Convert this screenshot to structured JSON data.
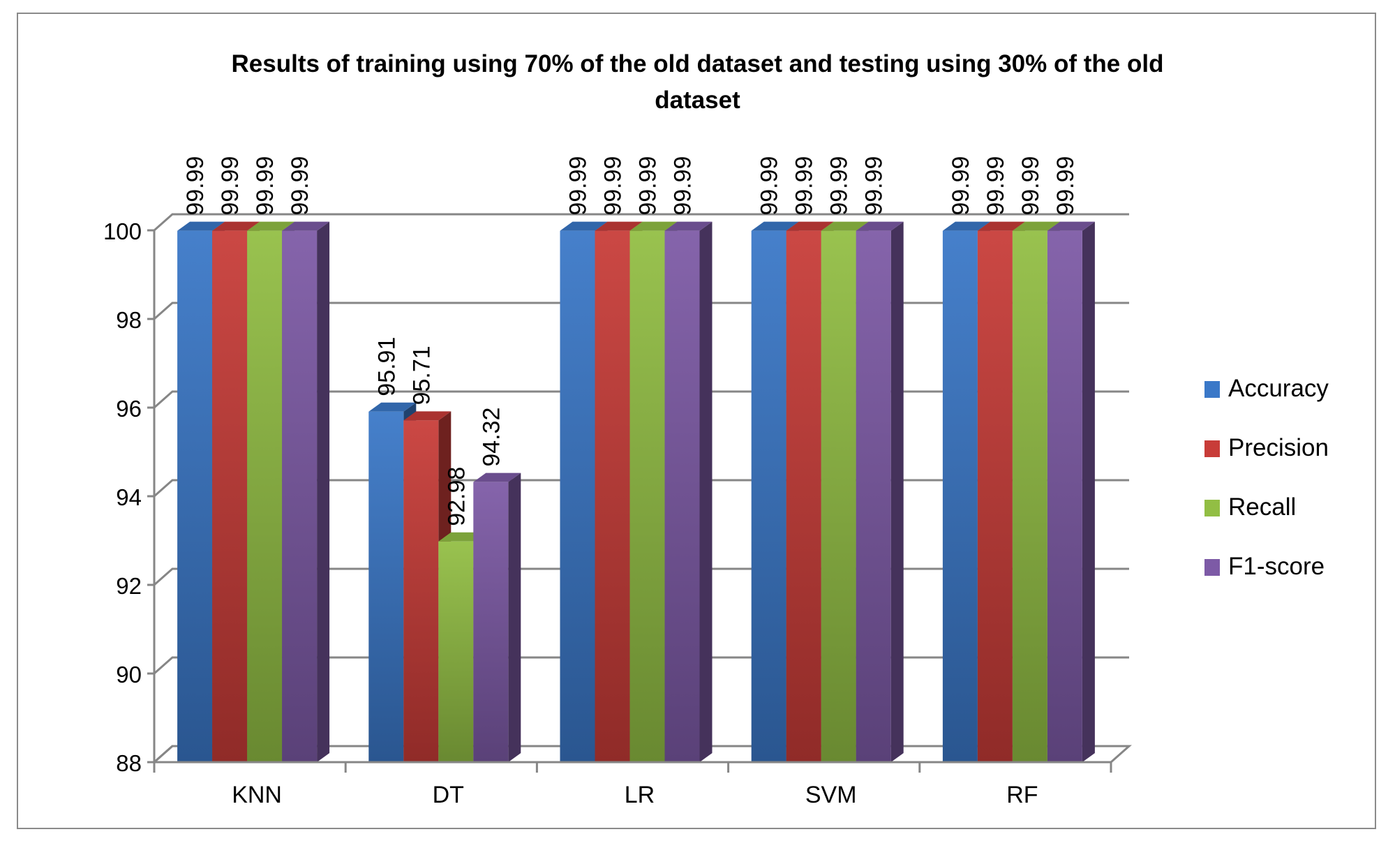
{
  "chart_data": {
    "type": "bar",
    "title_lines": [
      "Results of training using 70% of the old dataset and testing using 30% of the old",
      "dataset"
    ],
    "categories": [
      "KNN",
      "DT",
      "LR",
      "SVM",
      "RF"
    ],
    "series": [
      {
        "name": "Accuracy",
        "color": "#3a78c8",
        "values": [
          99.99,
          95.91,
          99.99,
          99.99,
          99.99
        ]
      },
      {
        "name": "Precision",
        "color": "#c83c38",
        "values": [
          99.99,
          95.71,
          99.99,
          99.99,
          99.99
        ]
      },
      {
        "name": "Recall",
        "color": "#92be44",
        "values": [
          99.99,
          92.98,
          99.99,
          99.99,
          99.99
        ]
      },
      {
        "name": "F1-score",
        "color": "#7d5aa6",
        "values": [
          99.99,
          94.32,
          99.99,
          99.99,
          99.99
        ]
      }
    ],
    "data_labels": [
      [
        "99.99",
        "95.91",
        "99.99",
        "99.99",
        "99.99"
      ],
      [
        "99.99",
        "95.71",
        "99.99",
        "99.99",
        "99.99"
      ],
      [
        "99.99",
        "92.98",
        "99.99",
        "99.99",
        "99.99"
      ],
      [
        "99.99",
        "94.32",
        "99.99",
        "99.99",
        "99.99"
      ]
    ],
    "y_ticks": [
      "88",
      "90",
      "92",
      "94",
      "96",
      "98",
      "100"
    ],
    "ylim": [
      88,
      100
    ],
    "y_step": 2,
    "grid": true,
    "legend_position": "right",
    "style": "3d-clustered-column"
  }
}
